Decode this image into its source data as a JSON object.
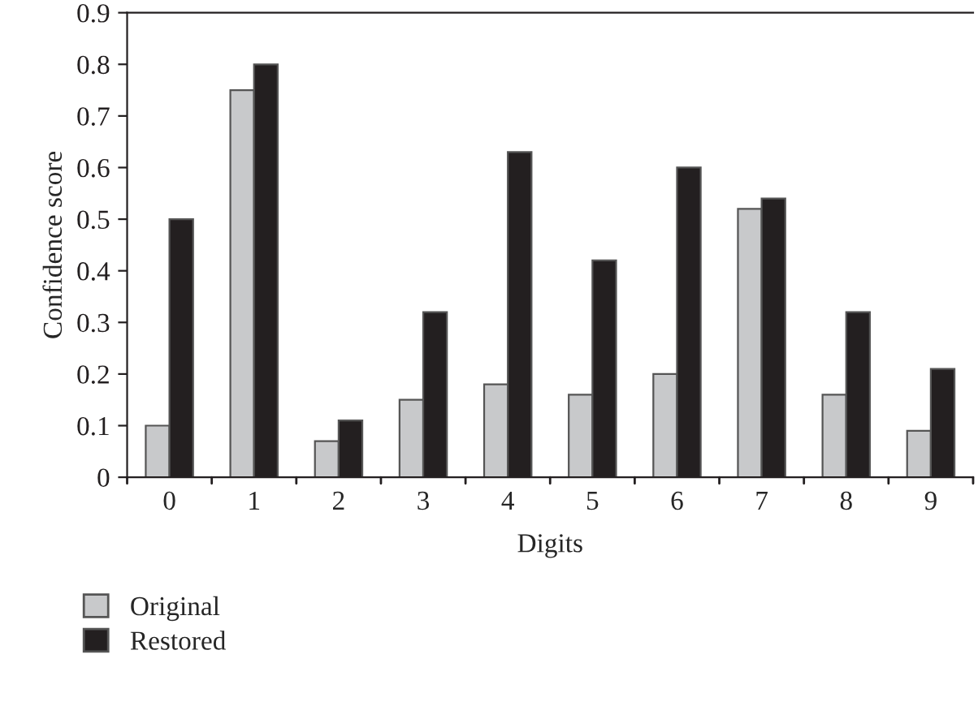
{
  "chart_data": {
    "type": "bar",
    "xlabel": "Digits",
    "ylabel": "Confidence score",
    "categories": [
      "0",
      "1",
      "2",
      "3",
      "4",
      "5",
      "6",
      "7",
      "8",
      "9"
    ],
    "series": [
      {
        "name": "Original",
        "color": "#c8c9cb",
        "values": [
          0.1,
          0.75,
          0.07,
          0.15,
          0.18,
          0.16,
          0.2,
          0.52,
          0.16,
          0.09
        ]
      },
      {
        "name": "Restored",
        "color": "#231f20",
        "values": [
          0.5,
          0.8,
          0.11,
          0.32,
          0.63,
          0.42,
          0.6,
          0.54,
          0.32,
          0.21
        ]
      }
    ],
    "ylim": [
      0,
      0.9
    ],
    "yticks": [
      {
        "value": 0,
        "label": "0"
      },
      0.1,
      0.2,
      0.3,
      0.4,
      0.5,
      0.6,
      0.7,
      0.8,
      0.9
    ],
    "grid": false,
    "legend": "bottom left"
  }
}
